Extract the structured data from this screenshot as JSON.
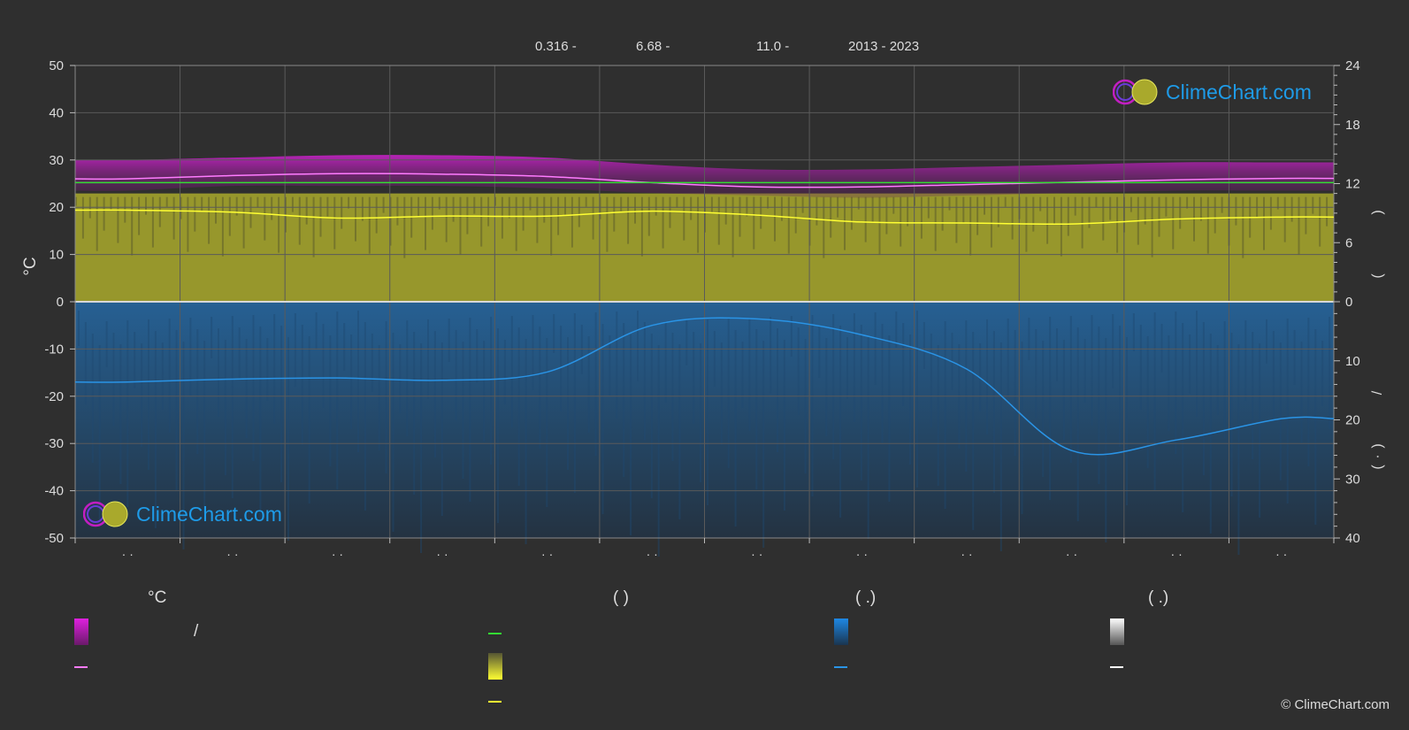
{
  "header": {
    "lat": "0.316 -",
    "lon": "6.68 -",
    "alt": "11.0 -",
    "years": "2013 - 2023"
  },
  "colors": {
    "background": "#2f2f2f",
    "grid": "#5a5a5a",
    "day_temp_band": "#c21ec2",
    "day_temp_line": "#ff7bff",
    "sunshine_line": "#33dd33",
    "daylight_band": "#a9a92c",
    "daylight_line": "#ffff33",
    "rain_band": "#1c6aa7",
    "rain_line": "#2a94e6",
    "snow_line": "#ffffff"
  },
  "logo_text": "ClimeChart.com",
  "copyright": "© ClimeChart.com",
  "legend": {
    "col1_head": "°C",
    "col2_head": "(           )",
    "col3_head": "(    .)",
    "col4_head": "(    .)",
    "slash": "/"
  },
  "chart_data": {
    "type": "area",
    "title": "",
    "y_left": {
      "label": "°C",
      "lim": [
        -50,
        50
      ],
      "ticks": [
        50,
        40,
        30,
        20,
        10,
        0,
        -10,
        -20,
        -30,
        -40,
        -50
      ]
    },
    "y_right_top": {
      "lim": [
        0,
        24
      ],
      "ticks": [
        24,
        18,
        12,
        6,
        0
      ],
      "label_chars": [
        ")",
        "("
      ]
    },
    "y_right_bottom": {
      "lim": [
        0,
        40
      ],
      "ticks": [
        0,
        10,
        20,
        30,
        40
      ],
      "label_chars": [
        "/",
        ")",
        "·",
        "("
      ]
    },
    "x_months": 12,
    "x_tick_labels": [
      "· ·",
      "· ·",
      "· ·",
      "· ·",
      "· ·",
      "· ·",
      "· ·",
      "· ·",
      "· ·",
      "· ·",
      "· ·",
      "· ·"
    ],
    "series": [
      {
        "key": "day_temp_avg",
        "axis": "temp",
        "values": [
          26.0,
          26.7,
          27.1,
          27.0,
          26.5,
          25.2,
          24.3,
          24.3,
          24.8,
          25.3,
          25.8,
          26.1
        ],
        "band": {
          "low": [
            23.5,
            24.5,
            24.5,
            24.5,
            24.0,
            23.0,
            22.5,
            22.0,
            22.5,
            23.0,
            23.5,
            23.5
          ],
          "high": [
            30.0,
            30.5,
            31.0,
            31.0,
            30.5,
            29.0,
            28.0,
            28.0,
            28.5,
            29.0,
            29.5,
            29.5
          ]
        }
      },
      {
        "key": "sunshine_hours",
        "axis": "hours",
        "values": [
          12.1,
          12.1,
          12.1,
          12.1,
          12.1,
          12.1,
          12.1,
          12.1,
          12.1,
          12.1,
          12.1,
          12.1
        ]
      },
      {
        "key": "daylight_hours",
        "axis": "hours",
        "values": [
          9.3,
          9.1,
          8.5,
          8.7,
          8.7,
          9.2,
          8.8,
          8.1,
          8.0,
          7.9,
          8.4,
          8.6
        ],
        "band_high": 11.0
      },
      {
        "key": "precipitation",
        "axis": "mm",
        "values": [
          13.6,
          13.1,
          12.9,
          13.3,
          11.9,
          4.0,
          2.9,
          5.6,
          11.4,
          25.2,
          23.4,
          19.8
        ]
      }
    ]
  }
}
